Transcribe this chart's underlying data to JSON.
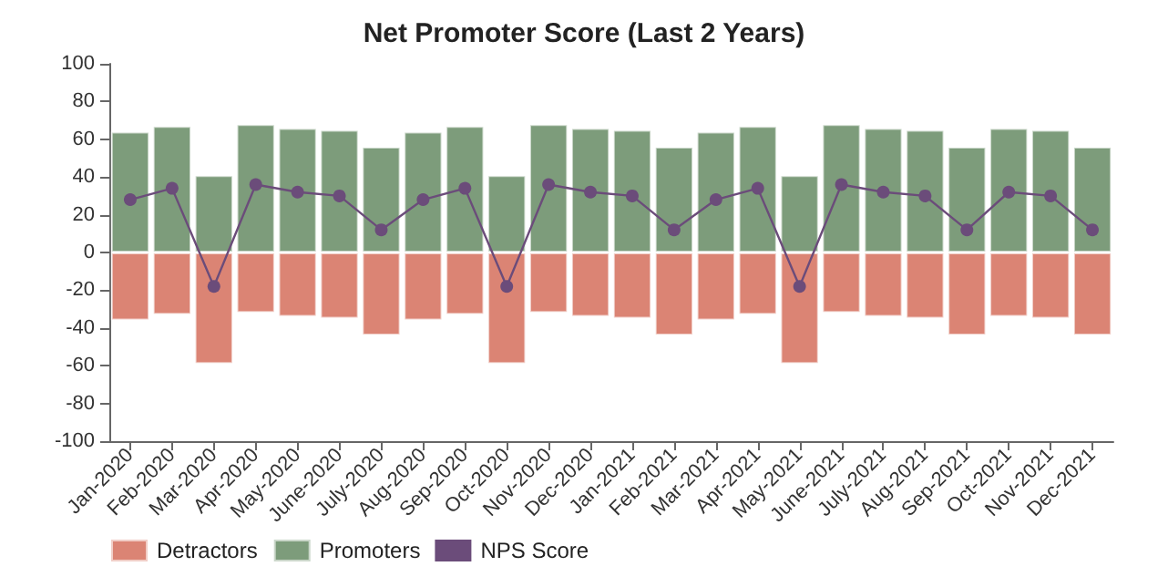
{
  "chart_data": {
    "type": "bar",
    "title": "Net Promoter Score (Last 2 Years)",
    "categories": [
      "Jan-2020",
      "Feb-2020",
      "Mar-2020",
      "Apr-2020",
      "May-2020",
      "June-2020",
      "July-2020",
      "Aug-2020",
      "Sep-2020",
      "Oct-2020",
      "Nov-2020",
      "Dec-2020",
      "Jan-2021",
      "Feb-2021",
      "Mar-2021",
      "Apr-2021",
      "May-2021",
      "June-2021",
      "July-2021",
      "Aug-2021",
      "Sep-2021",
      "Oct-2021",
      "Nov-2021",
      "Dec-2021"
    ],
    "series": [
      {
        "name": "Detractors",
        "color": "#db8474",
        "values": [
          -36,
          -33,
          -59,
          -32,
          -34,
          -35,
          -44,
          -36,
          -33,
          -59,
          -32,
          -34,
          -35,
          -44,
          -36,
          -33,
          -59,
          -32,
          -34,
          -35,
          -44,
          -34,
          -35,
          -44
        ]
      },
      {
        "name": "Promoters",
        "color": "#7d9c7b",
        "values": [
          64,
          67,
          41,
          68,
          66,
          65,
          56,
          64,
          67,
          41,
          68,
          66,
          65,
          56,
          64,
          67,
          41,
          68,
          66,
          65,
          56,
          66,
          65,
          56
        ]
      },
      {
        "name": "NPS Score",
        "type": "line",
        "color": "#6b4c7a",
        "marker": "circle",
        "values": [
          28,
          34,
          -18,
          36,
          32,
          30,
          12,
          28,
          34,
          -18,
          36,
          32,
          30,
          12,
          28,
          34,
          -18,
          36,
          32,
          30,
          12,
          32,
          30,
          12
        ]
      }
    ],
    "stacked": true,
    "ylim": [
      -100,
      100
    ],
    "yticks": [
      -100,
      -80,
      -60,
      -40,
      -20,
      0,
      20,
      40,
      60,
      80,
      100
    ],
    "grid": false,
    "legend": "bottom left"
  }
}
